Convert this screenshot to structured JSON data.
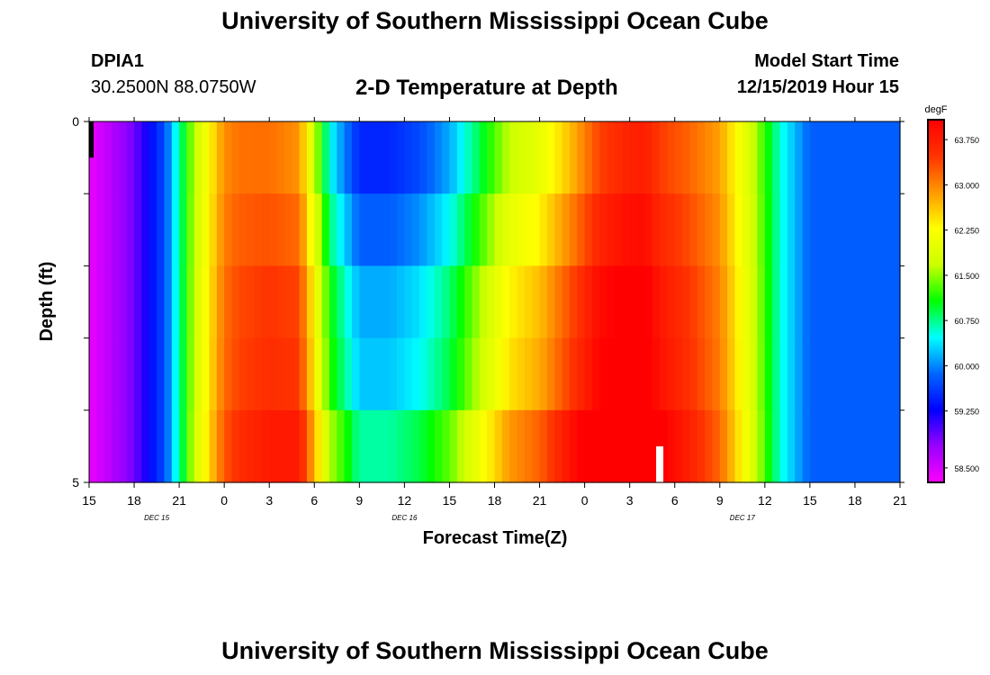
{
  "header": {
    "title": "University of Southern Mississippi Ocean Cube",
    "station_id": "DPIA1",
    "coords": "30.2500N 88.0750W",
    "plot_title": "2-D Temperature at Depth",
    "model_start_label": "Model Start Time",
    "model_start_value": "12/15/2019 Hour 15"
  },
  "footer": {
    "title": "University of Southern Mississippi Ocean Cube"
  },
  "chart_data": {
    "type": "heatmap",
    "title": "2-D Temperature at Depth",
    "xlabel": "Forecast Time(Z)",
    "ylabel": "Depth (ft)",
    "x_hours": [
      0,
      54
    ],
    "x_ticks": [
      "15",
      "18",
      "21",
      "0",
      "3",
      "6",
      "9",
      "12",
      "15",
      "18",
      "21",
      "0",
      "3",
      "6",
      "9",
      "12",
      "15",
      "18",
      "21"
    ],
    "date_labels": [
      {
        "label": "DEC 15",
        "hour": 4.5
      },
      {
        "label": "DEC 16",
        "hour": 21
      },
      {
        "label": "DEC 17",
        "hour": 43.5
      }
    ],
    "y_range": [
      0,
      5
    ],
    "y_tick_labels": [
      "0",
      "5"
    ],
    "depth_levels": [
      0.5,
      1.5,
      2.5,
      3.5,
      4.5
    ],
    "colorbar": {
      "unit": "degF",
      "min": 58.5,
      "max": 64.0,
      "tick_labels": [
        "63.750",
        "63.000",
        "62.250",
        "61.500",
        "60.750",
        "60.000",
        "59.250",
        "58.500"
      ],
      "stops": [
        "#ff00ff",
        "#9a00ff",
        "#0000ff",
        "#0066ff",
        "#00ffff",
        "#00ff00",
        "#ccff00",
        "#ffff00",
        "#ff9900",
        "#ff3300",
        "#ff0000"
      ]
    },
    "temperature_degF": {
      "keyframes_hour": [
        0,
        3,
        5,
        7,
        9,
        10,
        12,
        14,
        16,
        18,
        20,
        22,
        24,
        28,
        30,
        32,
        34,
        36,
        37,
        38,
        40,
        42,
        44,
        46,
        48,
        50,
        54
      ],
      "keyframes_temp": [
        58.6,
        59.2,
        60.0,
        61.8,
        63.1,
        63.3,
        63.4,
        63.3,
        61.2,
        60.3,
        60.3,
        60.5,
        60.9,
        62.3,
        62.6,
        63.2,
        63.8,
        64.0,
        64.0,
        63.7,
        63.4,
        63.0,
        62.0,
        60.8,
        60.1,
        60.1,
        60.1
      ],
      "level_offsets_after_hour_17": [
        -0.5,
        -0.2,
        0.1,
        0.2,
        0.6
      ]
    },
    "markers": [
      {
        "kind": "black-bar",
        "hour": 0,
        "depth_top": 0,
        "depth_bottom": 0.5
      },
      {
        "kind": "white-bar",
        "hour": 38,
        "depth_top": 4.5,
        "depth_bottom": 5
      }
    ]
  }
}
